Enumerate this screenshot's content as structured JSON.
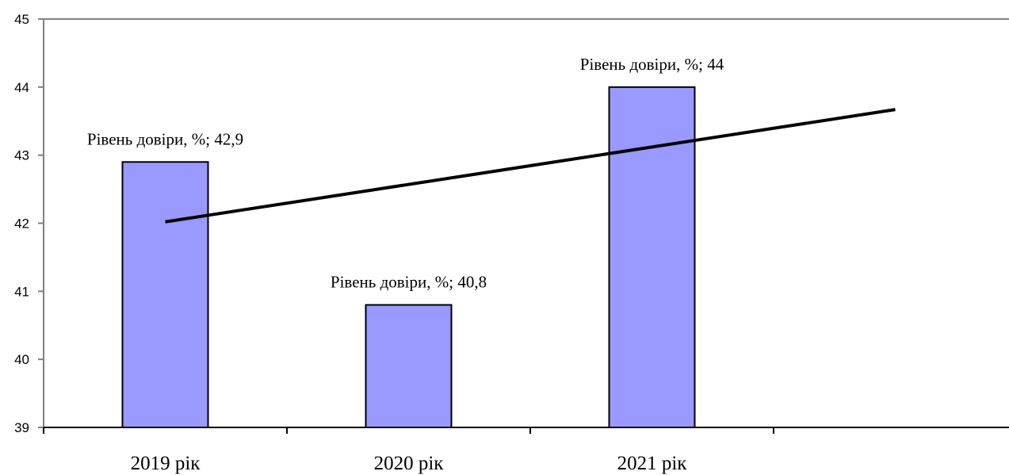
{
  "chart_data": {
    "type": "bar",
    "title": "",
    "xlabel": "",
    "ylabel": "",
    "categories": [
      "2019 рік",
      "2020 рік",
      "2021 рік"
    ],
    "series": [
      {
        "name": "Рівень довіри, %",
        "values": [
          42.9,
          40.8,
          44
        ],
        "color": "#9999ff"
      }
    ],
    "data_labels": [
      "Рівень довіри, %; 42,9",
      "Рівень довіри, %; 40,8",
      "Рівень довіри, %; 44"
    ],
    "ylim": [
      39,
      45
    ],
    "yticks": [
      39,
      40,
      41,
      42,
      43,
      44,
      45
    ],
    "trendline": {
      "type": "linear",
      "color": "#000000",
      "start": {
        "x": 1,
        "y": 42.02
      },
      "end": {
        "x": 4,
        "y": 43.67
      }
    },
    "grid": false,
    "legend": "none",
    "colors": {
      "bar_fill": "#9999ff",
      "bar_stroke": "#000000",
      "axis": "#808080"
    }
  }
}
